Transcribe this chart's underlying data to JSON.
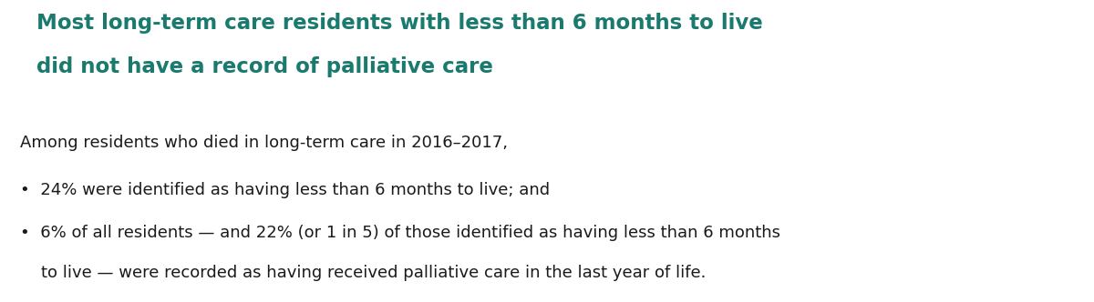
{
  "background_color": "#ffffff",
  "accent_bar_color": "#3aada0",
  "title_color": "#1a7a6e",
  "title_line1": "Most long-term care residents with less than 6 months to live",
  "title_line2": "did not have a record of palliative care",
  "title_fontsize": 16.5,
  "title_fontweight": "bold",
  "body_color": "#1a1a1a",
  "body_fontsize": 13.0,
  "intro_text": "Among residents who died in long-term care in 2016–2017,",
  "bullet1": "•  24% were identified as having less than 6 months to live; and",
  "bullet2_line1": "•  6% of all residents — and 22% (or 1 in 5) of those identified as having less than 6 months",
  "bullet2_line2": "    to live — were recorded as having received palliative care in the last year of life.",
  "fig_width": 12.0,
  "fig_height": 3.32,
  "dpi": 100
}
